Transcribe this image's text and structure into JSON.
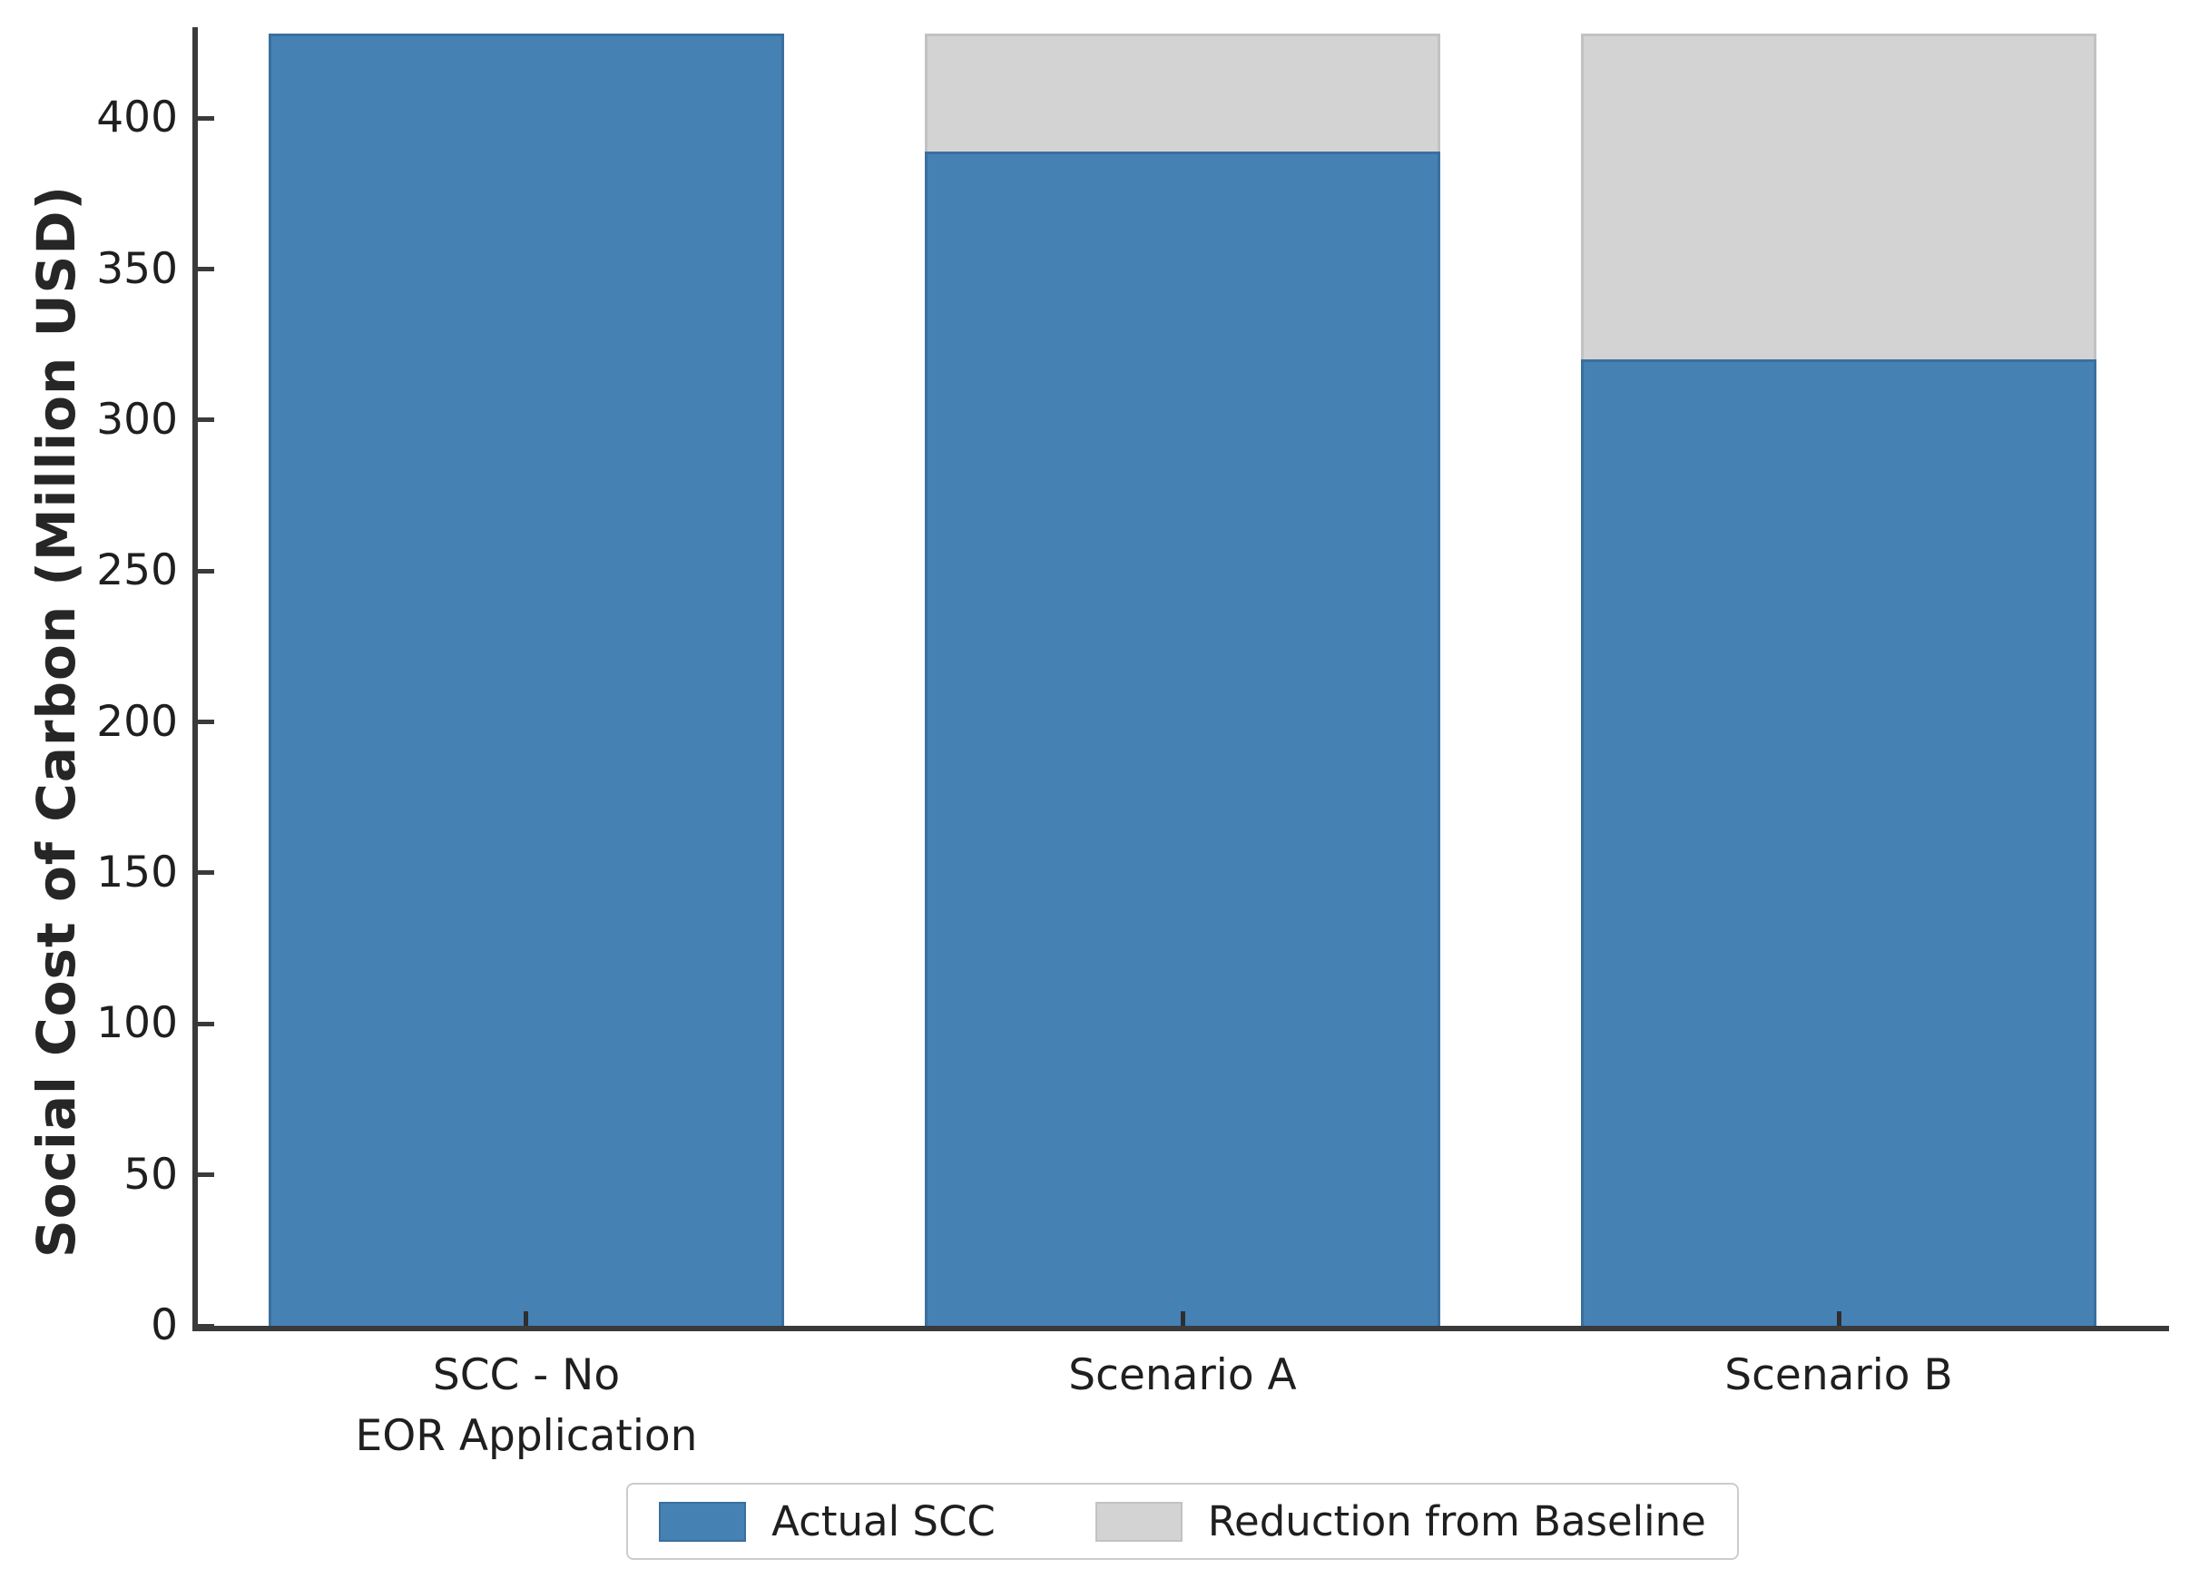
{
  "chart_data": {
    "type": "bar",
    "stacked": true,
    "title": "",
    "xlabel": "",
    "ylabel": "Social Cost of Carbon (Million USD)",
    "categories": [
      "SCC - No\nEOR Application",
      "Scenario A",
      "Scenario B"
    ],
    "series": [
      {
        "name": "Actual SCC",
        "color": "#4681B4",
        "edge_color": "#3A6F9E",
        "values": [
          428,
          389,
          320
        ]
      },
      {
        "name": "Reduction from Baseline",
        "color": "#D3D3D3",
        "edge_color": "#C2C2C2",
        "values": [
          0,
          39,
          108
        ]
      }
    ],
    "stack_totals": [
      428,
      428,
      428
    ],
    "ylim": [
      0,
      428
    ],
    "yticks": [
      0,
      50,
      100,
      150,
      200,
      250,
      300,
      350,
      400
    ],
    "grid": false,
    "tick_direction": "in",
    "legend_position": "bottom center",
    "axis_color": "#3a3a3a",
    "text_color": "#1f1f1f",
    "background_color": "#ffffff"
  }
}
